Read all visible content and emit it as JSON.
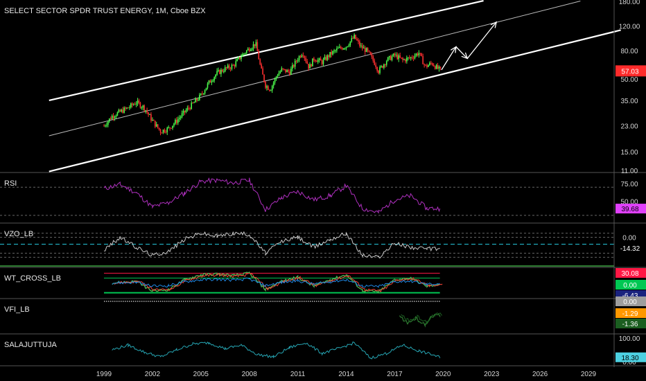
{
  "chart_data": {
    "type": "candlestick",
    "title": "SELECT SECTOR SPDR TRUST ENERGY, 1M, Cboe BZX",
    "x_tick_labels": [
      "1999",
      "2002",
      "2005",
      "2008",
      "2011",
      "2014",
      "2017",
      "2020",
      "2023",
      "2026",
      "2029"
    ],
    "main": {
      "scale": "log",
      "y_tick_labels": [
        "180.00",
        "120.00",
        "80.00",
        "50.00",
        "35.00",
        "23.00",
        "15.00",
        "11.00"
      ],
      "last_price_label": "57.03",
      "last_price_color": "#ff2b2b",
      "up_color": "#4cff4c",
      "down_color": "#ff3030",
      "price_path": [
        [
          1999.0,
          23
        ],
        [
          1999.5,
          27
        ],
        [
          2000.0,
          29
        ],
        [
          2000.5,
          31
        ],
        [
          2001.0,
          34
        ],
        [
          2001.5,
          31
        ],
        [
          2002.0,
          25
        ],
        [
          2002.5,
          21
        ],
        [
          2003.0,
          22
        ],
        [
          2003.5,
          25
        ],
        [
          2004.0,
          29
        ],
        [
          2004.5,
          33
        ],
        [
          2005.0,
          38
        ],
        [
          2005.5,
          47
        ],
        [
          2006.0,
          55
        ],
        [
          2006.5,
          59
        ],
        [
          2007.0,
          62
        ],
        [
          2007.5,
          73
        ],
        [
          2008.0,
          83
        ],
        [
          2008.4,
          90
        ],
        [
          2008.7,
          60
        ],
        [
          2009.0,
          45
        ],
        [
          2009.3,
          42
        ],
        [
          2009.7,
          53
        ],
        [
          2010.0,
          58
        ],
        [
          2010.5,
          56
        ],
        [
          2011.0,
          70
        ],
        [
          2011.3,
          78
        ],
        [
          2011.7,
          60
        ],
        [
          2012.0,
          70
        ],
        [
          2012.5,
          66
        ],
        [
          2013.0,
          75
        ],
        [
          2013.5,
          82
        ],
        [
          2014.0,
          86
        ],
        [
          2014.5,
          100
        ],
        [
          2014.9,
          85
        ],
        [
          2015.3,
          79
        ],
        [
          2015.8,
          64
        ],
        [
          2016.0,
          57
        ],
        [
          2016.5,
          68
        ],
        [
          2017.0,
          74
        ],
        [
          2017.5,
          68
        ],
        [
          2018.0,
          71
        ],
        [
          2018.5,
          77
        ],
        [
          2018.9,
          61
        ],
        [
          2019.3,
          65
        ],
        [
          2019.6,
          60
        ],
        [
          2019.9,
          57
        ]
      ],
      "channel_top": [
        [
          1995.6,
          35
        ],
        [
          2022.5,
          182
        ]
      ],
      "channel_mid": [
        [
          1995.6,
          19.5
        ],
        [
          2028.5,
          181
        ]
      ],
      "channel_bottom": [
        [
          1995.6,
          10.8
        ],
        [
          2031.0,
          112
        ]
      ],
      "projection_arrows": [
        [
          [
            2019.9,
            58
          ],
          [
            2020.8,
            85
          ]
        ],
        [
          [
            2020.8,
            85
          ],
          [
            2021.5,
            70
          ]
        ],
        [
          [
            2021.5,
            70
          ],
          [
            2023.3,
            128
          ]
        ]
      ]
    },
    "panels": [
      {
        "name": "RSI",
        "label": "RSI",
        "value_label": "39.68",
        "value_color": "#e040fb",
        "line_color": "#b030c0",
        "tick_labels": [
          "75.00",
          "50.00"
        ],
        "ylim": [
          25,
          85
        ],
        "values": [
          [
            1999,
            68
          ],
          [
            2000,
            74
          ],
          [
            2001,
            62
          ],
          [
            2002,
            42
          ],
          [
            2003,
            48
          ],
          [
            2004,
            62
          ],
          [
            2005,
            78
          ],
          [
            2006,
            80
          ],
          [
            2007,
            76
          ],
          [
            2008,
            80
          ],
          [
            2009,
            38
          ],
          [
            2010,
            55
          ],
          [
            2011,
            64
          ],
          [
            2012,
            52
          ],
          [
            2013,
            58
          ],
          [
            2014,
            72
          ],
          [
            2015,
            40
          ],
          [
            2016,
            34
          ],
          [
            2017,
            52
          ],
          [
            2018,
            58
          ],
          [
            2019,
            40
          ],
          [
            2019.8,
            39.68
          ]
        ]
      },
      {
        "name": "VZO_LB",
        "label": "VZO_LB",
        "value_label": "-14.32",
        "value_color": "#ffffff",
        "line_color": "#c8c8c8",
        "tick_labels": [
          "0.00"
        ],
        "ylim": [
          -90,
          90
        ],
        "values": [
          [
            1999,
            -25
          ],
          [
            2000,
            40
          ],
          [
            2001,
            -10
          ],
          [
            2002,
            -50
          ],
          [
            2003,
            -30
          ],
          [
            2004,
            30
          ],
          [
            2005,
            60
          ],
          [
            2006,
            45
          ],
          [
            2007,
            60
          ],
          [
            2008,
            55
          ],
          [
            2009,
            -40
          ],
          [
            2010,
            20
          ],
          [
            2011,
            40
          ],
          [
            2012,
            -10
          ],
          [
            2013,
            30
          ],
          [
            2014,
            60
          ],
          [
            2015,
            -50
          ],
          [
            2016,
            -60
          ],
          [
            2017,
            10
          ],
          [
            2018,
            -10
          ],
          [
            2019,
            -20
          ],
          [
            2019.8,
            -14.32
          ]
        ]
      },
      {
        "name": "WT_CROSS_LB",
        "label": "WT_CROSS_LB",
        "value_labels": [
          {
            "text": "30.08",
            "color": "#ff1744"
          },
          {
            "text": "0.00",
            "color": "#00c853"
          },
          {
            "text": "-6.43",
            "color": "#1a237e"
          }
        ],
        "ylim": [
          -70,
          70
        ],
        "wt1": [
          [
            1999.5,
            0
          ],
          [
            2001,
            10
          ],
          [
            2002,
            -50
          ],
          [
            2003,
            -40
          ],
          [
            2004,
            20
          ],
          [
            2005,
            50
          ],
          [
            2006,
            55
          ],
          [
            2007,
            45
          ],
          [
            2008,
            60
          ],
          [
            2009,
            -40
          ],
          [
            2010,
            10
          ],
          [
            2011,
            35
          ],
          [
            2012,
            -20
          ],
          [
            2013,
            20
          ],
          [
            2014,
            50
          ],
          [
            2015,
            -45
          ],
          [
            2016,
            -55
          ],
          [
            2017,
            20
          ],
          [
            2018,
            30
          ],
          [
            2019,
            -20
          ],
          [
            2019.8,
            -6.43
          ]
        ],
        "levels": [
          60,
          30,
          0,
          -60
        ]
      },
      {
        "name": "VFI_LB",
        "label": "VFI_LB",
        "value_labels": [
          {
            "text": "0.00",
            "color": "#9e9e9e"
          },
          {
            "text": "-1.29",
            "color": "#ff9800"
          },
          {
            "text": "-1.36",
            "color": "#1b5e20"
          }
        ],
        "ylim": [
          -4,
          1
        ],
        "values": [
          [
            2017.3,
            -1.5
          ],
          [
            2017.8,
            -2.8
          ],
          [
            2018.3,
            -1.9
          ],
          [
            2018.9,
            -3.1
          ],
          [
            2019.3,
            -1.4
          ],
          [
            2019.8,
            -1.36
          ]
        ]
      },
      {
        "name": "SALAJUTTUJA",
        "label": "SALAJUTTUJA",
        "value_label": "18.30",
        "value_color": "#4dd0e1",
        "line_color": "#26a6b4",
        "tick_labels": [
          "100.00",
          "0.00"
        ],
        "ylim": [
          0,
          100
        ],
        "values": [
          [
            1999.5,
            50
          ],
          [
            2000.5,
            70
          ],
          [
            2001.5,
            40
          ],
          [
            2002.5,
            20
          ],
          [
            2003.5,
            50
          ],
          [
            2004.5,
            75
          ],
          [
            2005.5,
            80
          ],
          [
            2006.5,
            55
          ],
          [
            2007.5,
            70
          ],
          [
            2008.5,
            30
          ],
          [
            2009.5,
            20
          ],
          [
            2010.5,
            60
          ],
          [
            2011.5,
            80
          ],
          [
            2012.5,
            35
          ],
          [
            2013.5,
            55
          ],
          [
            2014.5,
            80
          ],
          [
            2015.5,
            15
          ],
          [
            2016.5,
            35
          ],
          [
            2017.5,
            70
          ],
          [
            2018.5,
            45
          ],
          [
            2019.3,
            30
          ],
          [
            2019.8,
            18.3
          ]
        ]
      }
    ]
  }
}
